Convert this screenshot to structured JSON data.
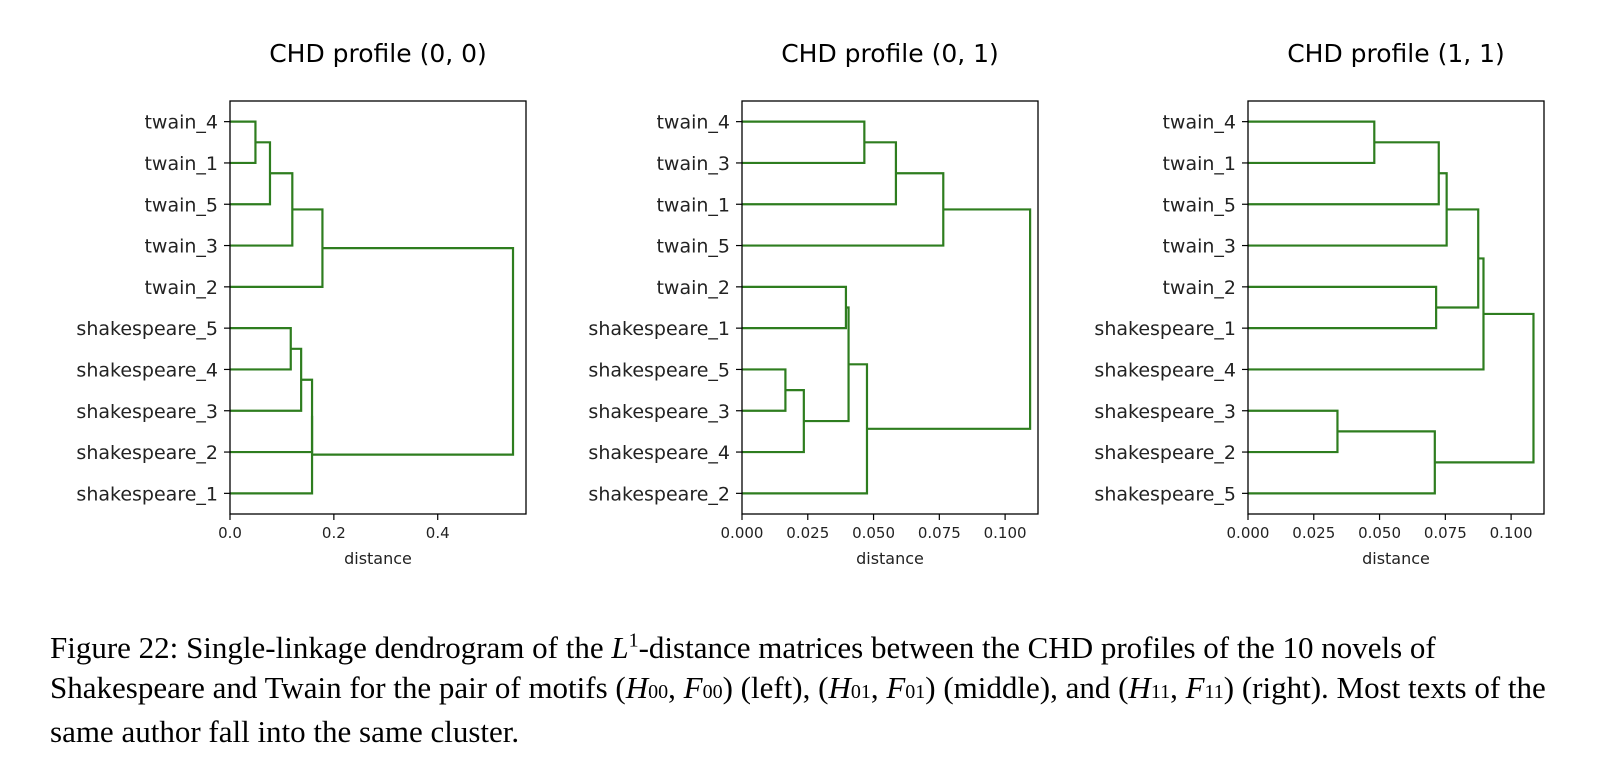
{
  "chart_data": [
    {
      "type": "dendrogram",
      "title": "CHD profile (0, 0)",
      "xlabel": "distance",
      "xlim": [
        0,
        0.57
      ],
      "xticks": [
        0.0,
        0.2,
        0.4
      ],
      "xtick_labels": [
        "0.0",
        "0.2",
        "0.4"
      ],
      "leaves": [
        "twain_4",
        "twain_1",
        "twain_5",
        "twain_3",
        "twain_2",
        "shakespeare_5",
        "shakespeare_4",
        "shakespeare_3",
        "shakespeare_2",
        "shakespeare_1"
      ],
      "merges": [
        {
          "a": "twain_4",
          "b": "twain_1",
          "height": 0.049,
          "id": "A"
        },
        {
          "a": "A",
          "b": "twain_5",
          "height": 0.077,
          "id": "B"
        },
        {
          "a": "B",
          "b": "twain_3",
          "height": 0.12,
          "id": "C"
        },
        {
          "a": "C",
          "b": "twain_2",
          "height": 0.178,
          "id": "D"
        },
        {
          "a": "shakespeare_5",
          "b": "shakespeare_4",
          "height": 0.117,
          "id": "E"
        },
        {
          "a": "E",
          "b": "shakespeare_3",
          "height": 0.137,
          "id": "F"
        },
        {
          "a": "F",
          "b": "shakespeare_2",
          "height": 0.158,
          "id": "G"
        },
        {
          "a": "G",
          "b": "shakespeare_1",
          "height": 0.158,
          "id": "H"
        },
        {
          "a": "D",
          "b": "H",
          "height": 0.545,
          "id": "I"
        }
      ]
    },
    {
      "type": "dendrogram",
      "title": "CHD profile (0, 1)",
      "xlabel": "distance",
      "xlim": [
        0,
        0.1125
      ],
      "xticks": [
        0.0,
        0.025,
        0.05,
        0.075,
        0.1
      ],
      "xtick_labels": [
        "0.000",
        "0.025",
        "0.050",
        "0.075",
        "0.100"
      ],
      "leaves": [
        "twain_4",
        "twain_3",
        "twain_1",
        "twain_5",
        "twain_2",
        "shakespeare_1",
        "shakespeare_5",
        "shakespeare_3",
        "shakespeare_4",
        "shakespeare_2"
      ],
      "merges": [
        {
          "a": "twain_4",
          "b": "twain_3",
          "height": 0.0465,
          "id": "A"
        },
        {
          "a": "A",
          "b": "twain_1",
          "height": 0.0585,
          "id": "B"
        },
        {
          "a": "B",
          "b": "twain_5",
          "height": 0.0765,
          "id": "C"
        },
        {
          "a": "twain_2",
          "b": "shakespeare_1",
          "height": 0.0395,
          "id": "D"
        },
        {
          "a": "shakespeare_5",
          "b": "shakespeare_3",
          "height": 0.0165,
          "id": "E"
        },
        {
          "a": "E",
          "b": "shakespeare_4",
          "height": 0.0235,
          "id": "F"
        },
        {
          "a": "D",
          "b": "F",
          "height": 0.0405,
          "id": "G"
        },
        {
          "a": "G",
          "b": "shakespeare_2",
          "height": 0.0475,
          "id": "H"
        },
        {
          "a": "C",
          "b": "H",
          "height": 0.1095,
          "id": "I"
        }
      ]
    },
    {
      "type": "dendrogram",
      "title": "CHD profile (1, 1)",
      "xlabel": "distance",
      "xlim": [
        0,
        0.1125
      ],
      "xticks": [
        0.0,
        0.025,
        0.05,
        0.075,
        0.1
      ],
      "xtick_labels": [
        "0.000",
        "0.025",
        "0.050",
        "0.075",
        "0.100"
      ],
      "leaves": [
        "twain_4",
        "twain_1",
        "twain_5",
        "twain_3",
        "twain_2",
        "shakespeare_1",
        "shakespeare_4",
        "shakespeare_3",
        "shakespeare_2",
        "shakespeare_5"
      ],
      "merges": [
        {
          "a": "twain_4",
          "b": "twain_1",
          "height": 0.048,
          "id": "A"
        },
        {
          "a": "A",
          "b": "twain_5",
          "height": 0.0725,
          "id": "B"
        },
        {
          "a": "B",
          "b": "twain_3",
          "height": 0.0755,
          "id": "C"
        },
        {
          "a": "twain_2",
          "b": "shakespeare_1",
          "height": 0.0715,
          "id": "D"
        },
        {
          "a": "C",
          "b": "D",
          "height": 0.0875,
          "id": "E"
        },
        {
          "a": "E",
          "b": "shakespeare_4",
          "height": 0.0895,
          "id": "F"
        },
        {
          "a": "shakespeare_3",
          "b": "shakespeare_2",
          "height": 0.034,
          "id": "G"
        },
        {
          "a": "G",
          "b": "shakespeare_5",
          "height": 0.071,
          "id": "H"
        },
        {
          "a": "F",
          "b": "H",
          "height": 0.1085,
          "id": "I"
        }
      ]
    }
  ],
  "colors": {
    "link": "#2e7d1f",
    "axis": "#000000",
    "text": "#222222"
  },
  "caption": {
    "figure_label": "Figure 22:",
    "t1": "Single-linkage dendrogram of the",
    "L": "L",
    "sup1": "1",
    "t2": "-distance matrices between the CHD profiles of the 10 novels of Shakespeare and Twain for the pair of motifs (",
    "H": "H",
    "sub00": "00",
    "comma1": ", ",
    "F": "F",
    "t3": ") (left), (",
    "sub01": "01",
    "t4": ") (middle), and (",
    "sub11": "11",
    "t5": ") (right). Most texts of the same author fall into the same cluster."
  }
}
